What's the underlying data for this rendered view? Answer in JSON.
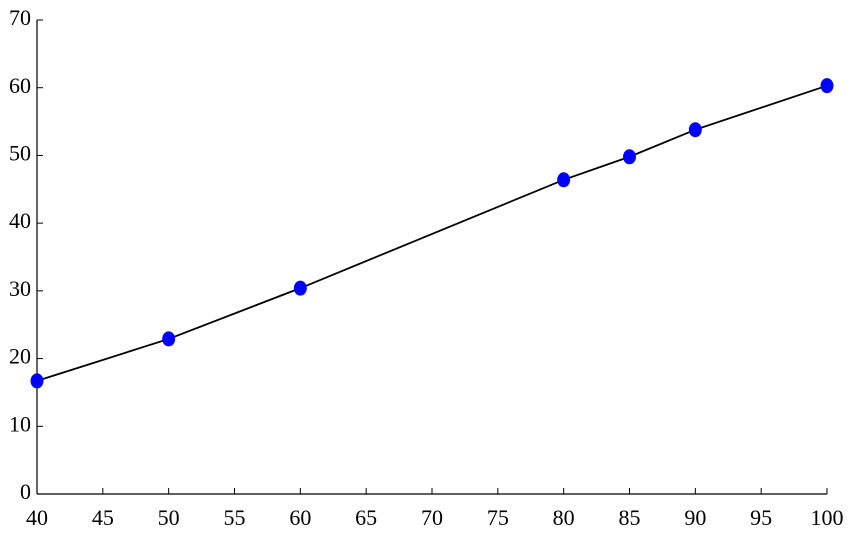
{
  "chart_data": {
    "type": "line",
    "x": [
      40,
      50,
      60,
      80,
      85,
      90,
      100
    ],
    "values": [
      16.7,
      22.9,
      30.4,
      46.4,
      49.8,
      53.8,
      60.3
    ],
    "color": "#000000",
    "marker_color": "#0000ff",
    "xlim": [
      40,
      100
    ],
    "xticks": [
      40,
      45,
      50,
      55,
      60,
      65,
      70,
      75,
      80,
      85,
      90,
      95,
      100
    ],
    "ylim": [
      0,
      70
    ],
    "yticks": [
      0,
      10,
      20,
      30,
      40,
      50,
      60,
      70
    ],
    "grid": false
  }
}
